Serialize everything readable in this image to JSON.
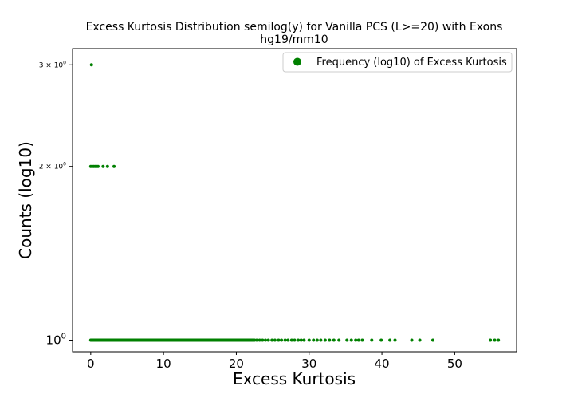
{
  "chart_data": {
    "type": "scatter",
    "title": "Excess Kurtosis Distribution semilog(y) for Vanilla PCS (L>=20) with Exons",
    "subtitle": "hg19/mm10",
    "xlabel": "Excess Kurtosis",
    "ylabel": "Counts (log10)",
    "y_scale": "log",
    "xlim": [
      -2.5,
      58.5
    ],
    "ylim": [
      0.955,
      3.2
    ],
    "x_ticks": [
      0,
      10,
      20,
      30,
      40,
      50
    ],
    "x_tick_labels": [
      "0",
      "10",
      "20",
      "30",
      "40",
      "50"
    ],
    "y_ticks": [
      1,
      2,
      3
    ],
    "y_tick_labels": [
      "10",
      "2 × 10",
      "3 × 10"
    ],
    "y_tick_exponent": "0",
    "grid": false,
    "legend_position": "top-right",
    "marker_color": "#008000",
    "series": [
      {
        "name": "Frequency (log10) of Excess Kurtosis",
        "points": [
          {
            "x": 0.1,
            "y": 3
          },
          {
            "x": 0.0,
            "y": 2
          },
          {
            "x": 0.2,
            "y": 2
          },
          {
            "x": 0.4,
            "y": 2
          },
          {
            "x": 0.6,
            "y": 2
          },
          {
            "x": 0.8,
            "y": 2
          },
          {
            "x": 1.0,
            "y": 2
          },
          {
            "x": 1.7,
            "y": 2
          },
          {
            "x": 2.3,
            "y": 2
          },
          {
            "x": 3.2,
            "y": 2
          }
        ],
        "dense_runs": [
          {
            "x_start": 0.0,
            "x_end": 22.5,
            "step": 0.1,
            "y": 1
          }
        ],
        "sparse_points_y1": [
          22.8,
          23.2,
          23.6,
          24.0,
          24.4,
          24.9,
          25.3,
          25.8,
          26.2,
          26.7,
          27.1,
          27.6,
          28.0,
          28.5,
          28.9,
          29.3,
          30.0,
          30.6,
          31.1,
          31.6,
          32.2,
          32.8,
          33.4,
          34.1,
          35.2,
          35.8,
          36.4,
          36.8,
          37.3,
          38.6,
          39.9,
          41.1,
          41.8,
          44.1,
          45.2,
          47.0,
          54.9,
          55.5,
          56.0
        ]
      }
    ]
  }
}
